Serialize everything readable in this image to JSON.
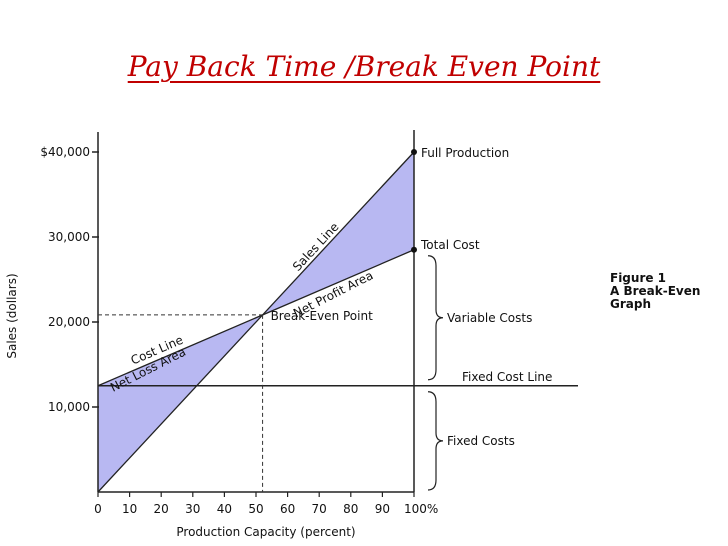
{
  "slide": {
    "title": "Pay Back Time /Break Even Point"
  },
  "chart_data": {
    "type": "line",
    "title": "",
    "xlabel": "Production Capacity (percent)",
    "ylabel": "Sales (dollars)",
    "x_ticks": [
      "0",
      "10",
      "20",
      "30",
      "40",
      "50",
      "60",
      "70",
      "80",
      "90",
      "100%"
    ],
    "y_ticks": [
      {
        "value": 10000,
        "label": "10,000"
      },
      {
        "value": 20000,
        "label": "20,000"
      },
      {
        "value": 30000,
        "label": "30,000"
      },
      {
        "value": 40000,
        "label": "$40,000"
      }
    ],
    "xlim": [
      0,
      100
    ],
    "ylim": [
      0,
      42000
    ],
    "grid": false,
    "series": [
      {
        "name": "Sales Line",
        "x": [
          0,
          100
        ],
        "y": [
          0,
          40000
        ]
      },
      {
        "name": "Cost Line",
        "x": [
          0,
          100
        ],
        "y": [
          12500,
          28500
        ]
      },
      {
        "name": "Fixed Cost Line",
        "x": [
          0,
          100
        ],
        "y": [
          12500,
          12500
        ]
      }
    ],
    "areas": {
      "net_loss": "Net Loss Area",
      "net_profit": "Net Profit Area"
    },
    "fill_color": "#b8b8f2",
    "annotations": {
      "full_production": "Full Production",
      "total_cost": "Total Cost",
      "break_even": "Break-Even Point",
      "variable_costs": "Variable Costs",
      "fixed_costs": "Fixed Costs",
      "fixed_cost_line": "Fixed Cost Line",
      "cost_line": "Cost Line",
      "sales_line": "Sales Line"
    },
    "caption": [
      "Figure 1",
      "A Break-Even",
      "Graph"
    ]
  }
}
